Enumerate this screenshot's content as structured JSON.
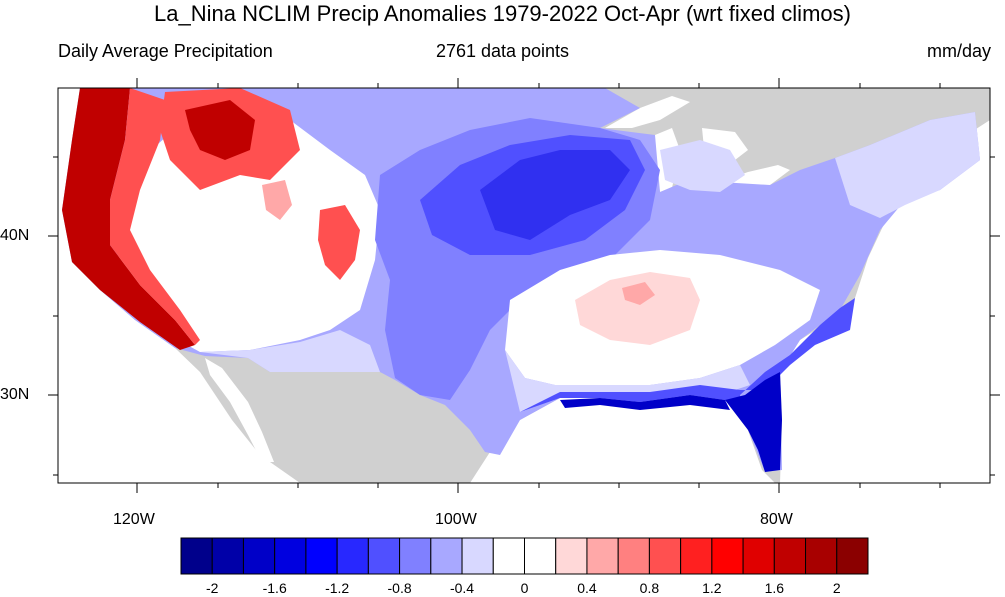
{
  "title": "La_Nina NCLIM Precip Anomalies 1979-2022 Oct-Apr (wrt fixed climos)",
  "subtitle_left": "Daily Average Precipitation",
  "subtitle_center": "2761 data points",
  "subtitle_right": "mm/day",
  "lat_labels": [
    "40N",
    "30N"
  ],
  "lon_labels": [
    "120W",
    "100W",
    "80W"
  ],
  "colorbar": {
    "colors": [
      "#00008b",
      "#0000a8",
      "#0000c8",
      "#0000e0",
      "#0000ff",
      "#2828ff",
      "#5050ff",
      "#8080ff",
      "#a8a8ff",
      "#d8d8ff",
      "#ffffff",
      "#ffffff",
      "#ffd8d8",
      "#ffa8a8",
      "#ff8080",
      "#ff5050",
      "#ff2020",
      "#ff0000",
      "#e00000",
      "#c00000",
      "#a80000",
      "#8b0000"
    ],
    "labels": [
      "-2",
      "-1.6",
      "-1.2",
      "-0.8",
      "-0.4",
      "0",
      "0.4",
      "0.8",
      "1.2",
      "1.6",
      "2"
    ]
  },
  "map_colors": {
    "land_no_data": "#d0d0d0",
    "water": "#ffffff",
    "dry_strong": "#0000c8",
    "dry_moderate": "#5050ff",
    "dry_light": "#8080ff",
    "dry_faint": "#a8a8ff",
    "dry_trace": "#d8d8ff",
    "neutral": "#ffffff",
    "wet_light": "#ffd8d8",
    "wet_moderate": "#ff5050",
    "wet_strong": "#c00000"
  }
}
